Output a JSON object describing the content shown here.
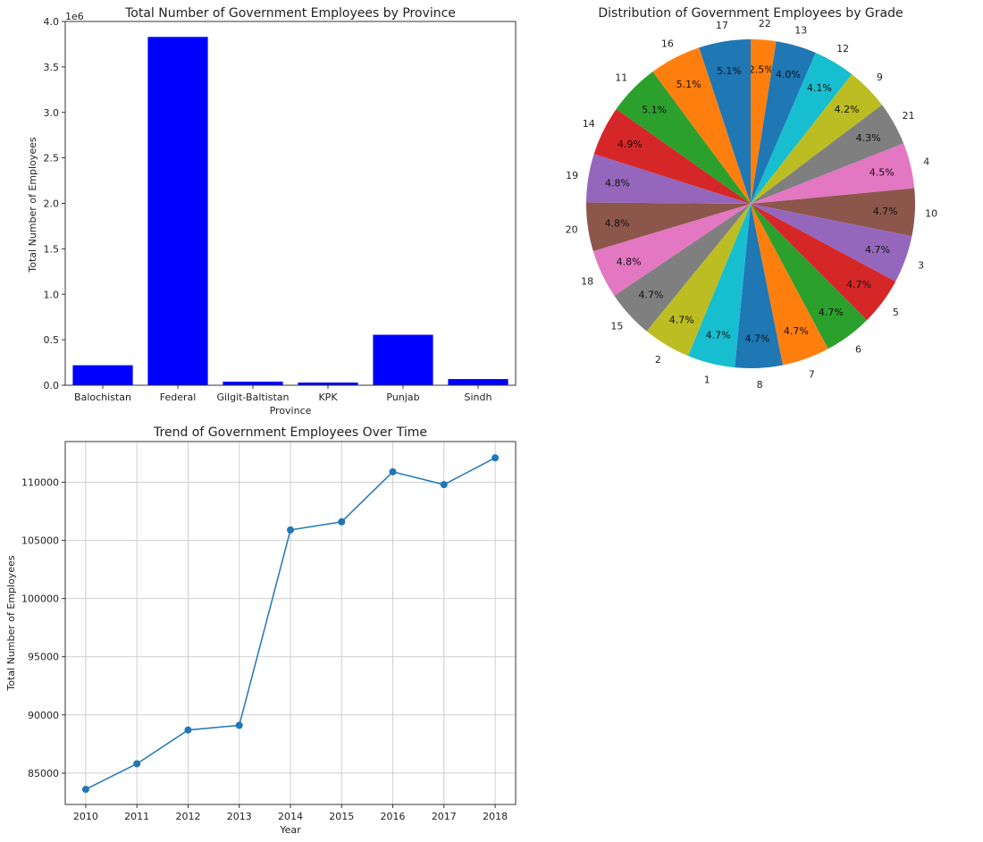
{
  "chart_data": [
    {
      "type": "bar",
      "title": "Total Number of Government Employees by Province",
      "xlabel": "Province",
      "ylabel": "Total Number of Employees",
      "y_multiplier_label": "1e6",
      "categories": [
        "Balochistan",
        "Federal",
        "Gilgit-Baltistan",
        "KPK",
        "Punjab",
        "Sindh"
      ],
      "values": [
        220000,
        3830000,
        40000,
        30000,
        555000,
        68000
      ],
      "ylim": [
        0,
        4000000
      ],
      "yticks": [
        0,
        500000,
        1000000,
        1500000,
        2000000,
        2500000,
        3000000,
        3500000,
        4000000
      ],
      "ytick_labels": [
        "0.0",
        "0.5",
        "1.0",
        "1.5",
        "2.0",
        "2.5",
        "3.0",
        "3.5",
        "4.0"
      ],
      "color": "#0000ff",
      "grid": false
    },
    {
      "type": "pie",
      "title": "Distribution of Government Employees by Grade",
      "slices": [
        {
          "label": "22",
          "value": 2.5,
          "pct_label": "2.5%",
          "color": "#ff7f0e"
        },
        {
          "label": "13",
          "value": 4.0,
          "pct_label": "4.0%",
          "color": "#1f77b4"
        },
        {
          "label": "12",
          "value": 4.1,
          "pct_label": "4.1%",
          "color": "#17becf"
        },
        {
          "label": "9",
          "value": 4.2,
          "pct_label": "4.2%",
          "color": "#bcbd22"
        },
        {
          "label": "21",
          "value": 4.3,
          "pct_label": "4.3%",
          "color": "#7f7f7f"
        },
        {
          "label": "4",
          "value": 4.5,
          "pct_label": "4.5%",
          "color": "#e377c2"
        },
        {
          "label": "10",
          "value": 4.7,
          "pct_label": "4.7%",
          "color": "#8c564b"
        },
        {
          "label": "3",
          "value": 4.7,
          "pct_label": "4.7%",
          "color": "#9467bd"
        },
        {
          "label": "5",
          "value": 4.7,
          "pct_label": "4.7%",
          "color": "#d62728"
        },
        {
          "label": "6",
          "value": 4.7,
          "pct_label": "4.7%",
          "color": "#2ca02c"
        },
        {
          "label": "7",
          "value": 4.7,
          "pct_label": "4.7%",
          "color": "#ff7f0e"
        },
        {
          "label": "8",
          "value": 4.7,
          "pct_label": "4.7%",
          "color": "#1f77b4"
        },
        {
          "label": "1",
          "value": 4.7,
          "pct_label": "4.7%",
          "color": "#17becf"
        },
        {
          "label": "2",
          "value": 4.7,
          "pct_label": "4.7%",
          "color": "#bcbd22"
        },
        {
          "label": "15",
          "value": 4.7,
          "pct_label": "4.7%",
          "color": "#7f7f7f"
        },
        {
          "label": "18",
          "value": 4.8,
          "pct_label": "4.8%",
          "color": "#e377c2"
        },
        {
          "label": "20",
          "value": 4.8,
          "pct_label": "4.8%",
          "color": "#8c564b"
        },
        {
          "label": "19",
          "value": 4.8,
          "pct_label": "4.8%",
          "color": "#9467bd"
        },
        {
          "label": "14",
          "value": 4.9,
          "pct_label": "4.9%",
          "color": "#d62728"
        },
        {
          "label": "11",
          "value": 5.1,
          "pct_label": "5.1%",
          "color": "#2ca02c"
        },
        {
          "label": "16",
          "value": 5.1,
          "pct_label": "5.1%",
          "color": "#ff7f0e"
        },
        {
          "label": "17",
          "value": 5.1,
          "pct_label": "5.1%",
          "color": "#1f77b4"
        }
      ]
    },
    {
      "type": "line",
      "title": "Trend of Government Employees Over Time",
      "xlabel": "Year",
      "ylabel": "Total Number of Employees",
      "x": [
        2010,
        2011,
        2012,
        2013,
        2014,
        2015,
        2016,
        2017,
        2018
      ],
      "y": [
        83600,
        85800,
        88700,
        89100,
        105900,
        106600,
        110900,
        109800,
        112100
      ],
      "xlim": [
        2009.6,
        2018.4
      ],
      "ylim": [
        82300,
        113500
      ],
      "yticks": [
        85000,
        90000,
        95000,
        100000,
        105000,
        110000
      ],
      "color": "#1f77b4",
      "marker": "circle",
      "grid": true
    }
  ]
}
